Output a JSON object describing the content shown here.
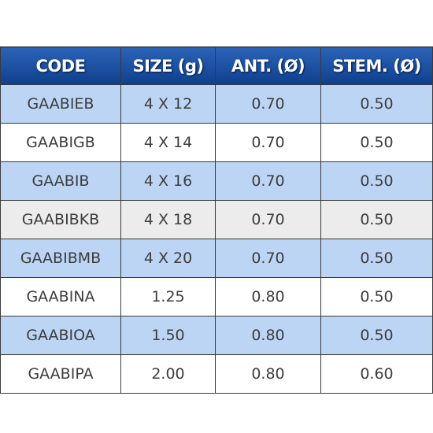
{
  "table": {
    "header": [
      "CODE",
      "SIZE (g)",
      "ANT. (Ø)",
      "STEM. (Ø)"
    ],
    "rows": [
      [
        "GAABIEB",
        "4 X 12",
        "0.70",
        "0.50"
      ],
      [
        "GAABIGB",
        "4 X 14",
        "0.70",
        "0.50"
      ],
      [
        "GAABIB",
        "4 X 16",
        "0.70",
        "0.50"
      ],
      [
        "GAABIBKB",
        "4 X 18",
        "0.70",
        "0.50"
      ],
      [
        "GAABIBMB",
        "4 X 20",
        "0.70",
        "0.50"
      ],
      [
        "GAABINA",
        "1.25",
        "0.80",
        "0.50"
      ],
      [
        "GAABIOA",
        "1.50",
        "0.80",
        "0.50"
      ],
      [
        "GAABIPA",
        "2.00",
        "0.80",
        "0.60"
      ]
    ]
  }
}
